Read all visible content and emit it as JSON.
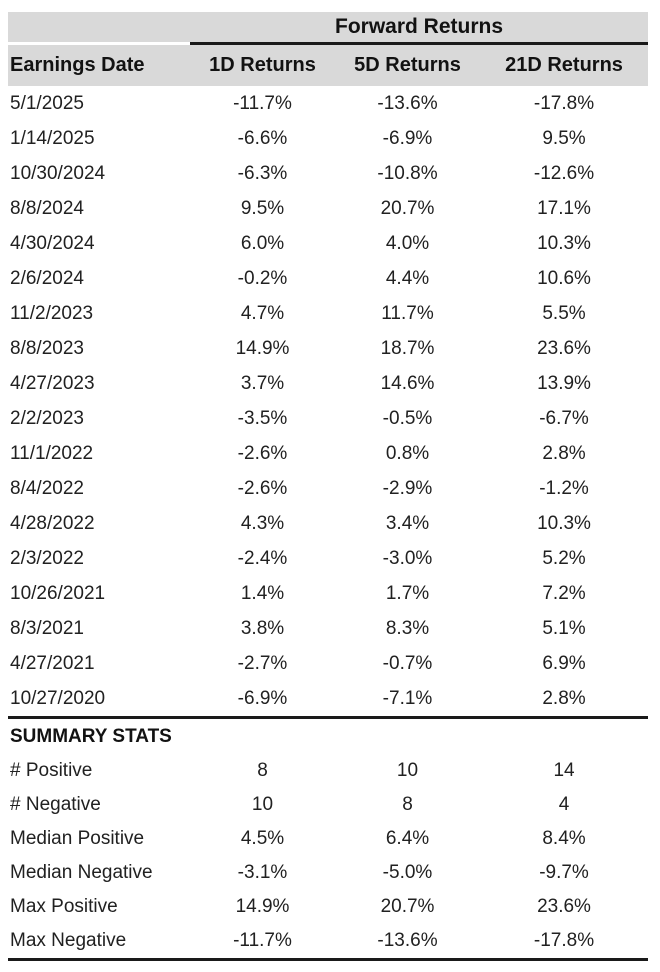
{
  "colors": {
    "header_bg": "#d9d9d9",
    "rule": "#1a1a1a",
    "text": "#212121",
    "background": "#ffffff"
  },
  "chart_data": {
    "type": "table",
    "title": "Forward Returns",
    "spanner_label": "Forward Returns",
    "columns": [
      "Earnings Date",
      "1D Returns",
      "5D Returns",
      "21D Returns"
    ],
    "rows": [
      [
        "5/1/2025",
        "-11.7%",
        "-13.6%",
        "-17.8%"
      ],
      [
        "1/14/2025",
        "-6.6%",
        "-6.9%",
        "9.5%"
      ],
      [
        "10/30/2024",
        "-6.3%",
        "-10.8%",
        "-12.6%"
      ],
      [
        "8/8/2024",
        "9.5%",
        "20.7%",
        "17.1%"
      ],
      [
        "4/30/2024",
        "6.0%",
        "4.0%",
        "10.3%"
      ],
      [
        "2/6/2024",
        "-0.2%",
        "4.4%",
        "10.6%"
      ],
      [
        "11/2/2023",
        "4.7%",
        "11.7%",
        "5.5%"
      ],
      [
        "8/8/2023",
        "14.9%",
        "18.7%",
        "23.6%"
      ],
      [
        "4/27/2023",
        "3.7%",
        "14.6%",
        "13.9%"
      ],
      [
        "2/2/2023",
        "-3.5%",
        "-0.5%",
        "-6.7%"
      ],
      [
        "11/1/2022",
        "-2.6%",
        "0.8%",
        "2.8%"
      ],
      [
        "8/4/2022",
        "-2.6%",
        "-2.9%",
        "-1.2%"
      ],
      [
        "4/28/2022",
        "4.3%",
        "3.4%",
        "10.3%"
      ],
      [
        "2/3/2022",
        "-2.4%",
        "-3.0%",
        "5.2%"
      ],
      [
        "10/26/2021",
        "1.4%",
        "1.7%",
        "7.2%"
      ],
      [
        "8/3/2021",
        "3.8%",
        "8.3%",
        "5.1%"
      ],
      [
        "4/27/2021",
        "-2.7%",
        "-0.7%",
        "6.9%"
      ],
      [
        "10/27/2020",
        "-6.9%",
        "-7.1%",
        "2.8%"
      ]
    ],
    "summary_title": "SUMMARY STATS",
    "summary_rows": [
      [
        "# Positive",
        "8",
        "10",
        "14"
      ],
      [
        "# Negative",
        "10",
        "8",
        "4"
      ],
      [
        "Median Positive",
        "4.5%",
        "6.4%",
        "8.4%"
      ],
      [
        "Median Negative",
        "-3.1%",
        "-5.0%",
        "-9.7%"
      ],
      [
        "Max Positive",
        "14.9%",
        "20.7%",
        "23.6%"
      ],
      [
        "Max Negative",
        "-11.7%",
        "-13.6%",
        "-17.8%"
      ]
    ]
  }
}
